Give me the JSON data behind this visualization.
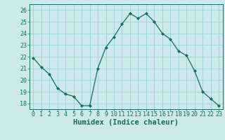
{
  "x": [
    0,
    1,
    2,
    3,
    4,
    5,
    6,
    7,
    8,
    9,
    10,
    11,
    12,
    13,
    14,
    15,
    16,
    17,
    18,
    19,
    20,
    21,
    22,
    23
  ],
  "y": [
    21.9,
    21.1,
    20.5,
    19.3,
    18.8,
    18.6,
    17.8,
    17.8,
    21.0,
    22.8,
    23.7,
    24.8,
    25.7,
    25.3,
    25.7,
    25.0,
    24.0,
    23.5,
    22.5,
    22.1,
    20.8,
    19.0,
    18.4,
    17.8
  ],
  "line_color": "#1a6b5a",
  "marker": "D",
  "marker_size": 2.0,
  "bg_color": "#cce9eb",
  "grid_color": "#9dcfd3",
  "xlabel": "Humidex (Indice chaleur)",
  "xlim": [
    -0.5,
    23.5
  ],
  "ylim": [
    17.5,
    26.5
  ],
  "yticks": [
    18,
    19,
    20,
    21,
    22,
    23,
    24,
    25,
    26
  ],
  "xticks": [
    0,
    1,
    2,
    3,
    4,
    5,
    6,
    7,
    8,
    9,
    10,
    11,
    12,
    13,
    14,
    15,
    16,
    17,
    18,
    19,
    20,
    21,
    22,
    23
  ],
  "xtick_labels": [
    "0",
    "1",
    "2",
    "3",
    "4",
    "5",
    "6",
    "7",
    "8",
    "9",
    "10",
    "11",
    "12",
    "13",
    "14",
    "15",
    "16",
    "17",
    "18",
    "19",
    "20",
    "21",
    "22",
    "23"
  ],
  "tick_fontsize": 6.0,
  "label_fontsize": 7.5
}
